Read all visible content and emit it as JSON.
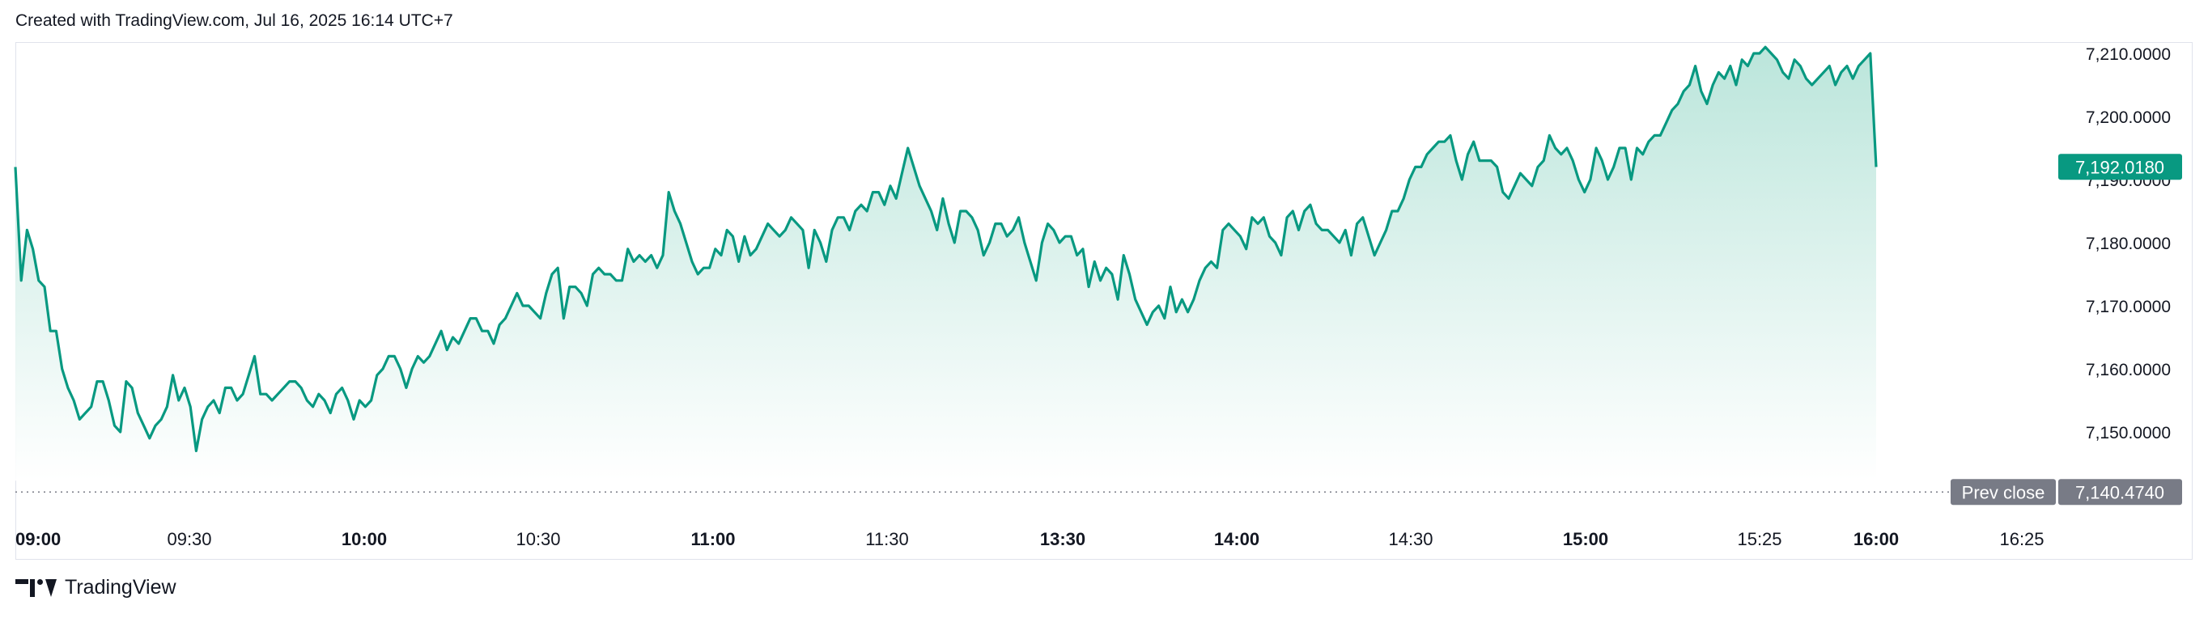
{
  "header": {
    "text": "Created with TradingView.com, Jul 16, 2025 16:14 UTC+7"
  },
  "footer": {
    "brand": "TradingView"
  },
  "colors": {
    "line": "#089981",
    "fill_top": "#b7e4d9",
    "fill_bottom": "#ffffff",
    "price_label_bg": "#089981",
    "prev_close_bg": "#787b86",
    "axis_text": "#131722"
  },
  "chart_data": {
    "type": "area",
    "y_axis": {
      "ticks": [
        {
          "value": 7150,
          "label": "7,150.0000"
        },
        {
          "value": 7160,
          "label": "7,160.0000"
        },
        {
          "value": 7170,
          "label": "7,170.0000"
        },
        {
          "value": 7180,
          "label": "7,180.0000"
        },
        {
          "value": 7190,
          "label": "7,190.0000"
        },
        {
          "value": 7200,
          "label": "7,200.0000"
        },
        {
          "value": 7210,
          "label": "7,210.0000"
        }
      ],
      "range": [
        7139,
        7212
      ]
    },
    "x_axis": {
      "ticks": [
        {
          "label": "09:00",
          "bold": true
        },
        {
          "label": "09:30",
          "bold": false
        },
        {
          "label": "10:00",
          "bold": true
        },
        {
          "label": "10:30",
          "bold": false
        },
        {
          "label": "11:00",
          "bold": true
        },
        {
          "label": "11:30",
          "bold": false
        },
        {
          "label": "13:30",
          "bold": true
        },
        {
          "label": "14:00",
          "bold": true
        },
        {
          "label": "14:30",
          "bold": false
        },
        {
          "label": "15:00",
          "bold": true
        },
        {
          "label": "15:25",
          "bold": false
        },
        {
          "label": "16:00",
          "bold": true
        },
        {
          "label": "16:25",
          "bold": false
        }
      ]
    },
    "last_price": {
      "value": 7192.018,
      "label": "7,192.0180"
    },
    "prev_close": {
      "value": 7140.474,
      "label": "7,140.4740",
      "title": "Prev close"
    },
    "values": [
      7192,
      7174,
      7182,
      7179,
      7174,
      7173,
      7166,
      7166,
      7160,
      7157,
      7155,
      7152,
      7153,
      7154,
      7158,
      7158,
      7155,
      7151,
      7150,
      7158,
      7157,
      7153,
      7151,
      7149,
      7151,
      7152,
      7154,
      7159,
      7155,
      7157,
      7154,
      7147,
      7152,
      7154,
      7155,
      7153,
      7157,
      7157,
      7155,
      7156,
      7159,
      7162,
      7156,
      7156,
      7155,
      7156,
      7157,
      7158,
      7158,
      7157,
      7155,
      7154,
      7156,
      7155,
      7153,
      7156,
      7157,
      7155,
      7152,
      7155,
      7154,
      7155,
      7159,
      7160,
      7162,
      7162,
      7160,
      7157,
      7160,
      7162,
      7161,
      7162,
      7164,
      7166,
      7163,
      7165,
      7164,
      7166,
      7168,
      7168,
      7166,
      7166,
      7164,
      7167,
      7168,
      7170,
      7172,
      7170,
      7170,
      7169,
      7168,
      7172,
      7175,
      7176,
      7168,
      7173,
      7173,
      7172,
      7170,
      7175,
      7176,
      7175,
      7175,
      7174,
      7174,
      7179,
      7177,
      7178,
      7177,
      7178,
      7176,
      7178,
      7188,
      7185,
      7183,
      7180,
      7177,
      7175,
      7176,
      7176,
      7179,
      7178,
      7182,
      7181,
      7177,
      7181,
      7178,
      7179,
      7181,
      7183,
      7182,
      7181,
      7182,
      7184,
      7183,
      7182,
      7176,
      7182,
      7180,
      7177,
      7182,
      7184,
      7184,
      7182,
      7185,
      7186,
      7185,
      7188,
      7188,
      7186,
      7189,
      7187,
      7191,
      7195,
      7192,
      7189,
      7187,
      7185,
      7182,
      7187,
      7183,
      7180,
      7185,
      7185,
      7184,
      7182,
      7178,
      7180,
      7183,
      7183,
      7181,
      7182,
      7184,
      7180,
      7177,
      7174,
      7180,
      7183,
      7182,
      7180,
      7181,
      7181,
      7178,
      7179,
      7173,
      7177,
      7174,
      7176,
      7175,
      7171,
      7178,
      7175,
      7171,
      7169,
      7167,
      7169,
      7170,
      7168,
      7173,
      7169,
      7171,
      7169,
      7171,
      7174,
      7176,
      7177,
      7176,
      7182,
      7183,
      7182,
      7181,
      7179,
      7184,
      7183,
      7184,
      7181,
      7180,
      7178,
      7184,
      7185,
      7182,
      7185,
      7186,
      7183,
      7182,
      7182,
      7181,
      7180,
      7182,
      7178,
      7183,
      7184,
      7181,
      7178,
      7180,
      7182,
      7185,
      7185,
      7187,
      7190,
      7192,
      7192,
      7194,
      7195,
      7196,
      7196,
      7197,
      7193,
      7190,
      7194,
      7196,
      7193,
      7193,
      7193,
      7192,
      7188,
      7187,
      7189,
      7191,
      7190,
      7189,
      7192,
      7193,
      7197,
      7195,
      7194,
      7195,
      7193,
      7190,
      7188,
      7190,
      7195,
      7193,
      7190,
      7192,
      7195,
      7195,
      7190,
      7195,
      7194,
      7196,
      7197,
      7197,
      7199,
      7201,
      7202,
      7204,
      7205,
      7208,
      7204,
      7202,
      7205,
      7207,
      7206,
      7208,
      7205,
      7209,
      7208,
      7210,
      7210,
      7211,
      7210,
      7209,
      7207,
      7206,
      7209,
      7208,
      7206,
      7205,
      7206,
      7207,
      7208,
      7205,
      7207,
      7208,
      7206,
      7208,
      7209,
      7210,
      7192
    ]
  }
}
